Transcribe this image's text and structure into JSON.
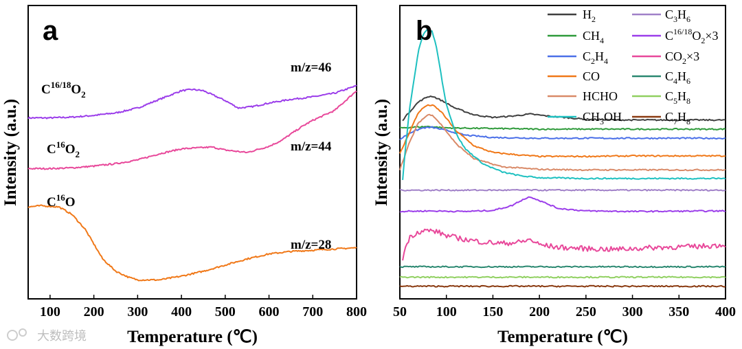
{
  "watermark": "大数跨境",
  "chart_data": [
    {
      "id": "a",
      "type": "line",
      "panel_label": "a",
      "xlabel": "Temperature (℃)",
      "ylabel": "Intensity (a.u.)",
      "xlim": [
        50,
        800
      ],
      "ylim": [
        0,
        1
      ],
      "xticks": [
        100,
        200,
        300,
        400,
        500,
        600,
        700,
        800
      ],
      "series": [
        {
          "name": "C16/18O2",
          "label_main": "C",
          "label_sup": "16/18",
          "label_tail": "O",
          "label_sub": "2",
          "mz": "m/z=46",
          "color": "#9b3dea",
          "x": [
            50,
            100,
            150,
            200,
            250,
            300,
            350,
            400,
            425,
            450,
            500,
            530,
            560,
            600,
            650,
            700,
            750,
            800
          ],
          "y": [
            0.69,
            0.69,
            0.693,
            0.7,
            0.71,
            0.73,
            0.765,
            0.8,
            0.805,
            0.8,
            0.76,
            0.73,
            0.735,
            0.75,
            0.765,
            0.775,
            0.79,
            0.82
          ]
        },
        {
          "name": "C16O2",
          "label_main": "C",
          "label_sup": "16",
          "label_tail": "O",
          "label_sub": "2",
          "mz": "m/z=44",
          "color": "#e8489a",
          "x": [
            50,
            100,
            150,
            200,
            250,
            300,
            350,
            400,
            450,
            470,
            500,
            550,
            600,
            630,
            650,
            680,
            700,
            750,
            800
          ],
          "y": [
            0.485,
            0.485,
            0.488,
            0.495,
            0.505,
            0.52,
            0.545,
            0.565,
            0.57,
            0.572,
            0.56,
            0.55,
            0.575,
            0.6,
            0.625,
            0.66,
            0.68,
            0.72,
            0.8
          ]
        },
        {
          "name": "C16O",
          "label_main": "C",
          "label_sup": "16",
          "label_tail": "O",
          "label_sub": "",
          "mz": "m/z=28",
          "color": "#f07818",
          "x": [
            50,
            80,
            120,
            150,
            180,
            200,
            220,
            250,
            280,
            300,
            350,
            400,
            450,
            500,
            550,
            600,
            650,
            700,
            750,
            800
          ],
          "y": [
            0.33,
            0.335,
            0.33,
            0.3,
            0.24,
            0.18,
            0.12,
            0.07,
            0.045,
            0.035,
            0.035,
            0.05,
            0.07,
            0.095,
            0.12,
            0.14,
            0.15,
            0.155,
            0.16,
            0.165
          ]
        }
      ]
    },
    {
      "id": "b",
      "type": "line",
      "panel_label": "b",
      "xlabel": "Temperature (℃)",
      "ylabel": "Intensity (a.u.)",
      "xlim": [
        50,
        400
      ],
      "ylim": [
        0,
        1
      ],
      "xticks": [
        50,
        100,
        150,
        200,
        250,
        300,
        350,
        400
      ],
      "series": [
        {
          "name": "H2",
          "main": "H",
          "sub": "2",
          "rest": "",
          "color": "#3f3f3f",
          "x": [
            53,
            60,
            70,
            80,
            85,
            95,
            110,
            130,
            150,
            170,
            190,
            210,
            250,
            300,
            350,
            400
          ],
          "y": [
            0.67,
            0.7,
            0.74,
            0.76,
            0.762,
            0.745,
            0.715,
            0.69,
            0.68,
            0.685,
            0.693,
            0.685,
            0.673,
            0.67,
            0.67,
            0.67
          ]
        },
        {
          "name": "CH4",
          "main": "CH",
          "sub": "4",
          "rest": "",
          "color": "#2e9a3a",
          "x": [
            50,
            80,
            100,
            200,
            400
          ],
          "y": [
            0.64,
            0.645,
            0.64,
            0.635,
            0.635
          ]
        },
        {
          "name": "C2H4",
          "main": "C",
          "sub": "2",
          "rest": "H|4",
          "color": "#4a6fe8",
          "x": [
            50,
            60,
            75,
            85,
            100,
            120,
            150,
            200,
            300,
            400
          ],
          "y": [
            0.595,
            0.62,
            0.64,
            0.642,
            0.63,
            0.612,
            0.603,
            0.6,
            0.6,
            0.6
          ]
        },
        {
          "name": "CO",
          "main": "CO",
          "sub": "",
          "rest": "",
          "color": "#f07818",
          "x": [
            50,
            60,
            70,
            78,
            85,
            95,
            110,
            130,
            150,
            180,
            200,
            250,
            300,
            400
          ],
          "y": [
            0.54,
            0.62,
            0.7,
            0.725,
            0.728,
            0.7,
            0.63,
            0.57,
            0.545,
            0.535,
            0.53,
            0.53,
            0.532,
            0.532
          ]
        },
        {
          "name": "HCHO",
          "main": "HCHO",
          "sub": "",
          "rest": "",
          "color": "#d98a68",
          "x": [
            50,
            60,
            70,
            80,
            85,
            95,
            110,
            130,
            160,
            200,
            250,
            300,
            400
          ],
          "y": [
            0.48,
            0.58,
            0.66,
            0.69,
            0.69,
            0.65,
            0.58,
            0.52,
            0.49,
            0.48,
            0.478,
            0.478,
            0.478
          ]
        },
        {
          "name": "CH3OH",
          "main": "CH",
          "sub": "3",
          "rest": "OH",
          "color": "#1dc0c0",
          "x": [
            53,
            56,
            60,
            65,
            70,
            75,
            80,
            85,
            90,
            95,
            100,
            110,
            120,
            140,
            160,
            180,
            200,
            250,
            300,
            400
          ],
          "y": [
            0.44,
            0.56,
            0.7,
            0.82,
            0.94,
            1.0,
            1.02,
            1.01,
            0.94,
            0.83,
            0.73,
            0.62,
            0.56,
            0.5,
            0.47,
            0.455,
            0.448,
            0.445,
            0.445,
            0.445
          ]
        },
        {
          "name": "C3H6",
          "main": "C",
          "sub": "3",
          "rest": "H|6",
          "color": "#a080c8",
          "x": [
            50,
            100,
            200,
            300,
            400
          ],
          "y": [
            0.4,
            0.4,
            0.4,
            0.4,
            0.4
          ]
        },
        {
          "name": "C16/18O2×3",
          "main": "C",
          "sub": "",
          "rest": "16/18|O|2|×3",
          "color": "#9b3dea",
          "x": [
            50,
            80,
            120,
            150,
            170,
            180,
            190,
            200,
            220,
            250,
            300,
            400
          ],
          "y": [
            0.318,
            0.32,
            0.318,
            0.322,
            0.34,
            0.36,
            0.375,
            0.36,
            0.33,
            0.32,
            0.318,
            0.32
          ]
        },
        {
          "name": "CO2×3",
          "main": "CO",
          "sub": "2",
          "rest": "×3",
          "color": "#e8489a",
          "x": [
            53,
            56,
            60,
            65,
            70,
            80,
            90,
            100,
            120,
            140,
            160,
            180,
            190,
            200,
            220,
            250,
            280,
            300,
            330,
            360,
            380,
            400
          ],
          "y": [
            0.13,
            0.18,
            0.215,
            0.23,
            0.24,
            0.245,
            0.24,
            0.225,
            0.21,
            0.2,
            0.195,
            0.2,
            0.21,
            0.19,
            0.18,
            0.175,
            0.172,
            0.175,
            0.18,
            0.182,
            0.185,
            0.19
          ]
        },
        {
          "name": "C4H6",
          "main": "C",
          "sub": "4",
          "rest": "H|6",
          "color": "#2a8870",
          "x": [
            50,
            400
          ],
          "y": [
            0.105,
            0.105
          ]
        },
        {
          "name": "C5H8",
          "main": "C",
          "sub": "5",
          "rest": "H|8",
          "color": "#90d060",
          "x": [
            50,
            400
          ],
          "y": [
            0.065,
            0.065
          ]
        },
        {
          "name": "C7H8",
          "main": "C",
          "sub": "7",
          "rest": "H|8",
          "color": "#8a3a10",
          "x": [
            50,
            400
          ],
          "y": [
            0.03,
            0.03
          ]
        }
      ]
    }
  ]
}
